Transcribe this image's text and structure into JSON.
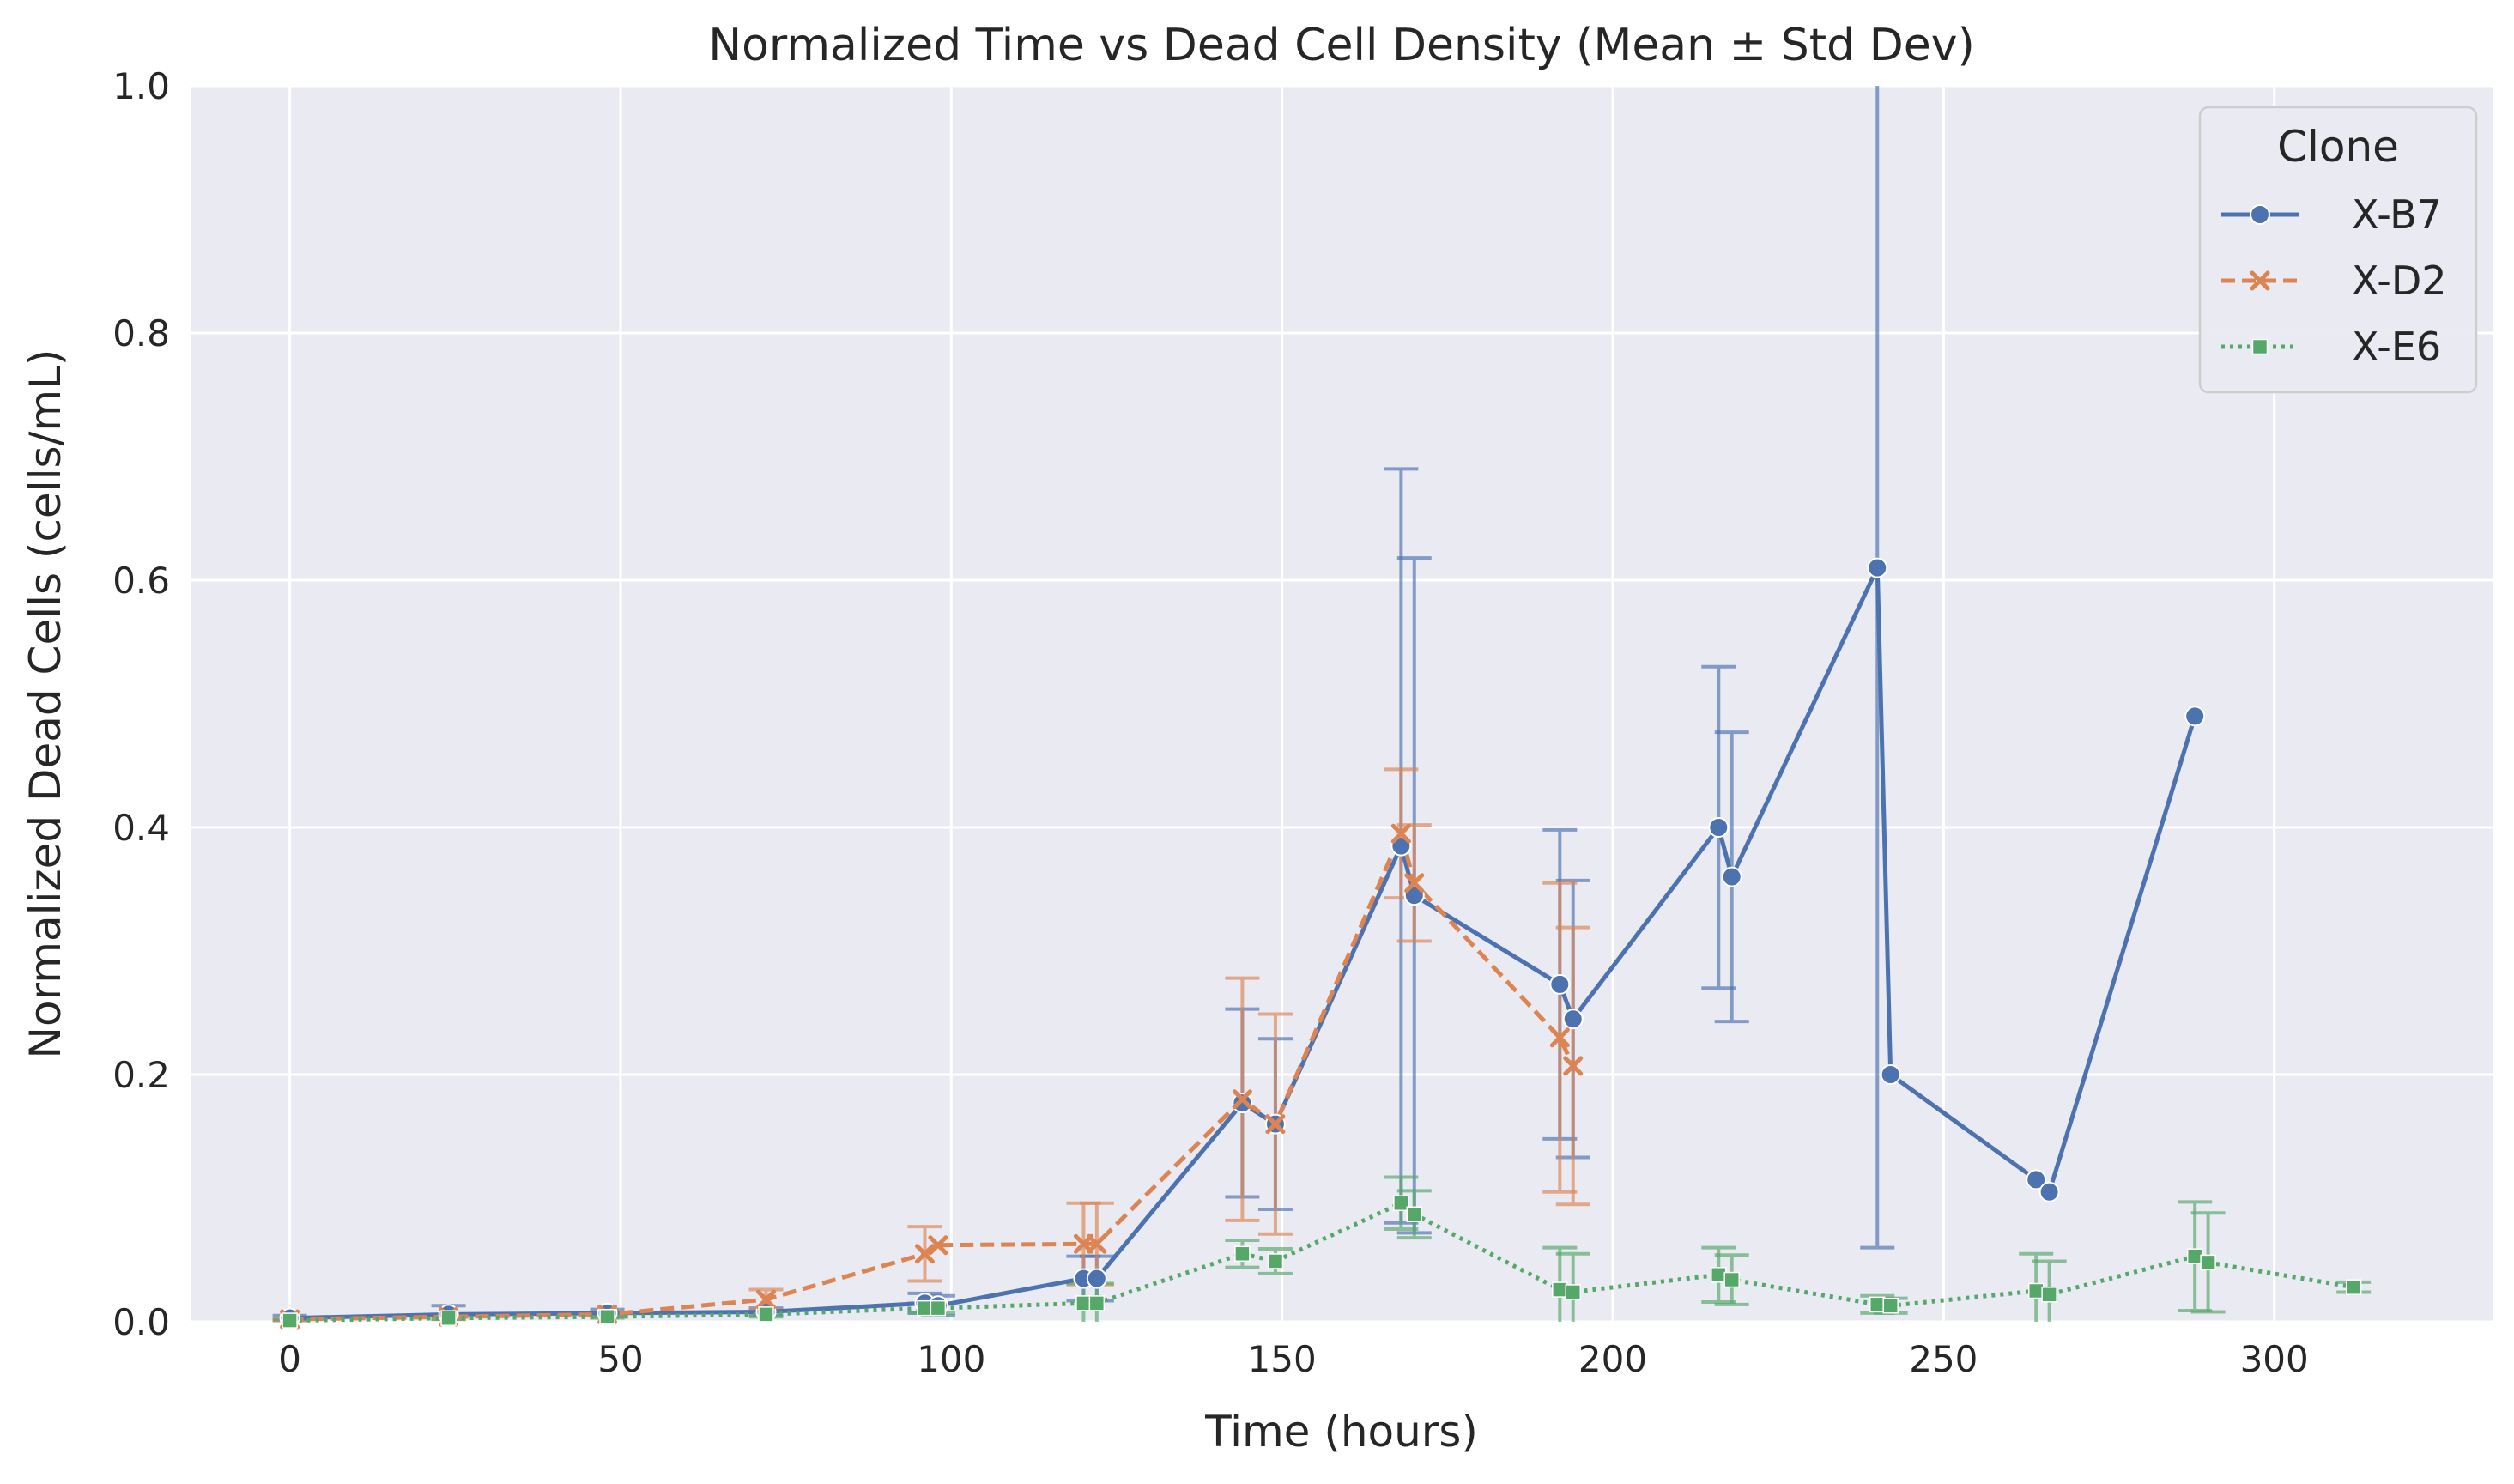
{
  "chart_data": {
    "type": "line",
    "title": "Normalized Time vs Dead Cell Density (Mean ± Std Dev)",
    "xlabel": "Time (hours)",
    "ylabel": "Normalized Dead Cells (cells/mL)",
    "xlim": [
      -15,
      333
    ],
    "ylim": [
      0,
      1.0
    ],
    "xticks": [
      "0",
      "50",
      "100",
      "150",
      "200",
      "250",
      "300"
    ],
    "yticks": [
      "0.0",
      "0.2",
      "0.4",
      "0.6",
      "0.8",
      "1.0"
    ],
    "grid": true,
    "legend": {
      "title": "Clone",
      "position": "top-right"
    },
    "series": [
      {
        "name": "X-B7",
        "color": "#4c72b0",
        "linestyle": "solid",
        "marker": "circle",
        "x": [
          0,
          24,
          48,
          72,
          96,
          98,
          120,
          122,
          144,
          149,
          168,
          170,
          192,
          194,
          216,
          218,
          240,
          242,
          264,
          266,
          288
        ],
        "y": [
          0.003,
          0.006,
          0.007,
          0.008,
          0.015,
          0.013,
          0.035,
          0.035,
          0.177,
          0.16,
          0.385,
          0.345,
          0.273,
          0.245,
          0.4,
          0.36,
          0.61,
          0.2,
          0.115,
          0.105,
          0.49
        ],
        "err": [
          0.002,
          0.007,
          0.003,
          0.003,
          0.008,
          0.008,
          0.018,
          0.018,
          0.076,
          0.069,
          0.305,
          0.273,
          0.125,
          0.112,
          0.13,
          0.117,
          0.55,
          0.0,
          0.0,
          0.0,
          0.0
        ]
      },
      {
        "name": "X-D2",
        "color": "#dd8452",
        "linestyle": "dashed",
        "marker": "x",
        "x": [
          0,
          24,
          48,
          72,
          96,
          98,
          120,
          122,
          144,
          149,
          168,
          170,
          192,
          194
        ],
        "y": [
          0.002,
          0.004,
          0.006,
          0.018,
          0.055,
          0.062,
          0.063,
          0.063,
          0.18,
          0.16,
          0.395,
          0.355,
          0.23,
          0.207
        ],
        "err": [
          0.001,
          0.002,
          0.002,
          0.008,
          0.022,
          0.0,
          0.033,
          0.033,
          0.098,
          0.089,
          0.052,
          0.047,
          0.125,
          0.112
        ]
      },
      {
        "name": "X-E6",
        "color": "#55a868",
        "linestyle": "dotted",
        "marker": "square",
        "x": [
          0,
          24,
          48,
          72,
          96,
          98,
          120,
          122,
          144,
          149,
          168,
          170,
          192,
          194,
          216,
          218,
          240,
          242,
          264,
          266,
          288,
          290,
          312
        ],
        "y": [
          0.001,
          0.003,
          0.004,
          0.006,
          0.011,
          0.011,
          0.015,
          0.015,
          0.055,
          0.049,
          0.096,
          0.087,
          0.026,
          0.024,
          0.038,
          0.034,
          0.014,
          0.013,
          0.025,
          0.022,
          0.053,
          0.048,
          0.028
        ],
        "err": [
          0.001,
          0.001,
          0.001,
          0.002,
          0.004,
          0.004,
          0.016,
          0.016,
          0.011,
          0.01,
          0.021,
          0.019,
          0.034,
          0.031,
          0.022,
          0.02,
          0.007,
          0.006,
          0.03,
          0.027,
          0.044,
          0.04,
          0.004
        ]
      }
    ]
  }
}
